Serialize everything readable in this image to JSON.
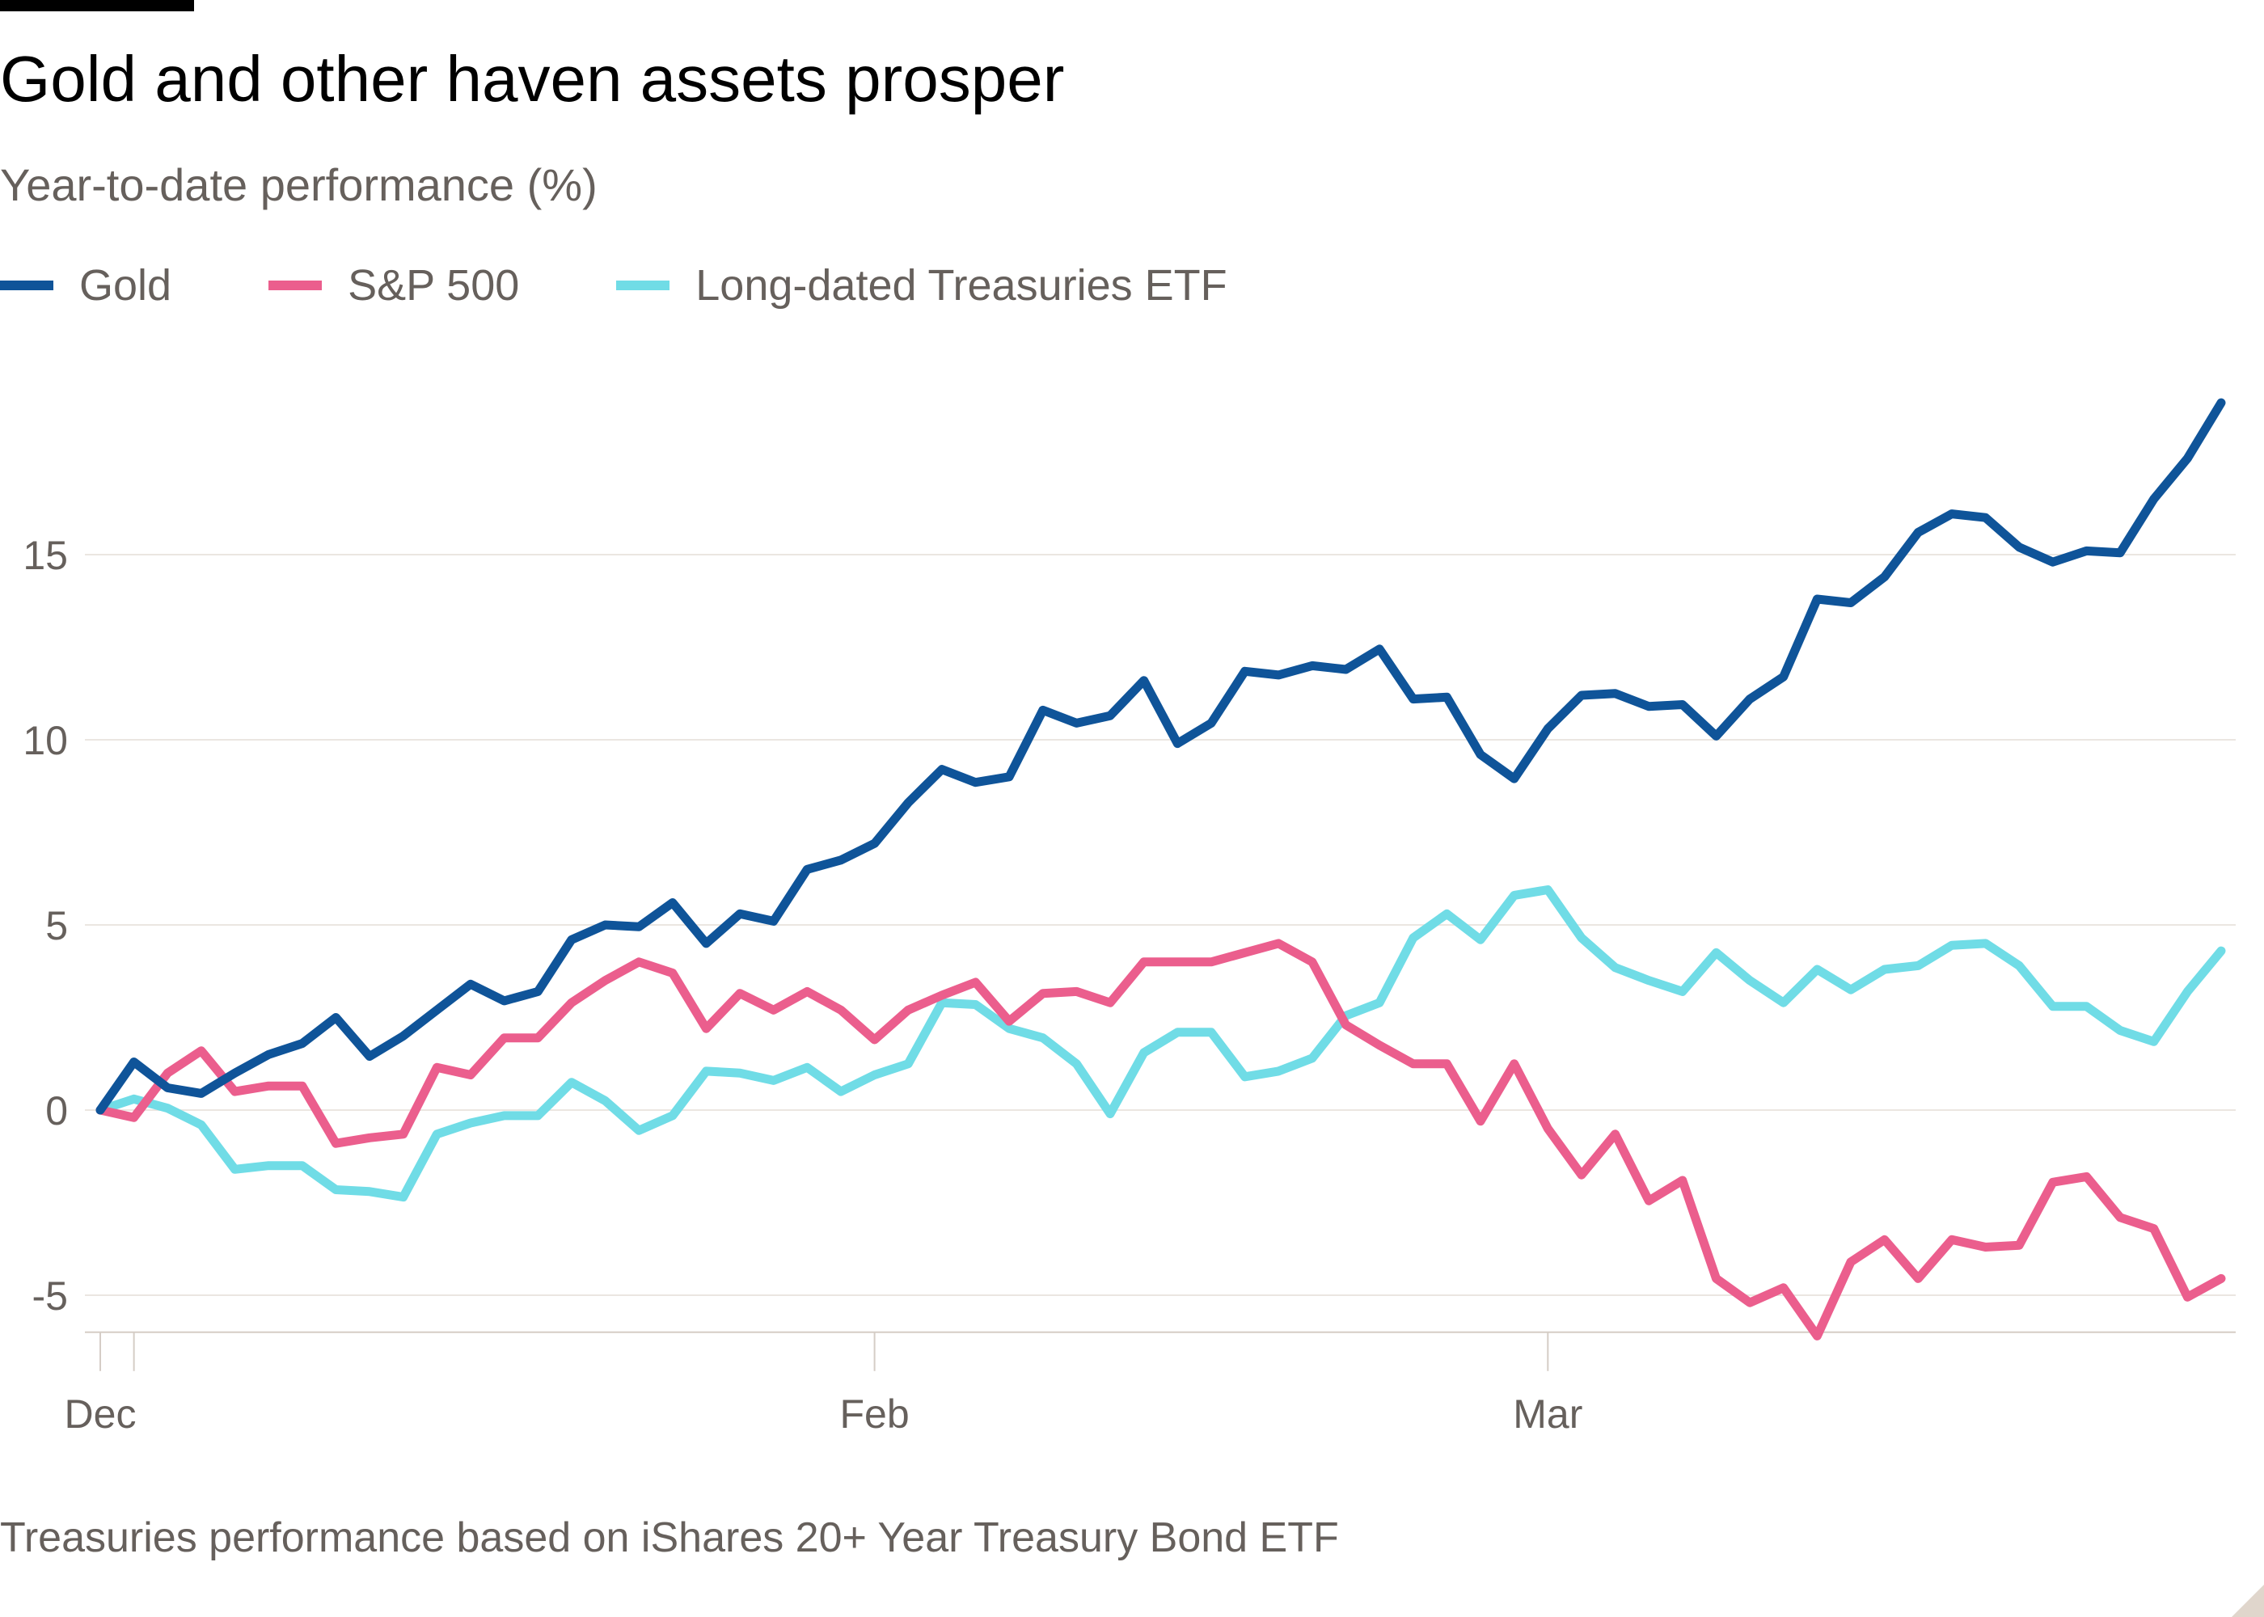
{
  "title": "Gold and other haven assets prosper",
  "subtitle": "Year-to-date performance (%)",
  "footnote": "Treasuries performance based on iShares 20+ Year Treasury Bond ETF",
  "colors": {
    "gold": "#0f5499",
    "sp500": "#eb5e8d",
    "treasuries": "#70dce6",
    "grid": "#ebe6e1",
    "axis": "#d5cdc6"
  },
  "chart_data": {
    "type": "line",
    "title": "Gold and other haven assets prosper",
    "subtitle": "Year-to-date performance (%)",
    "xlabel": "",
    "ylabel": "",
    "ylim": [
      -6,
      20
    ],
    "y_ticks": [
      -5,
      0,
      5,
      10,
      15
    ],
    "y_tick_labels": [
      "-5",
      "0",
      "5",
      "10",
      "15"
    ],
    "x_ticks": [
      {
        "label": "Dec",
        "index": 0
      },
      {
        "label": "",
        "index": 1
      },
      {
        "label": "Feb",
        "index": 23
      },
      {
        "label": "Mar",
        "index": 43
      }
    ],
    "grid": true,
    "legend_placement": "top-left",
    "series": [
      {
        "name": "Gold",
        "color": "#0f5499",
        "values": [
          0,
          1.3,
          0.6,
          0.45,
          1.0,
          1.5,
          1.8,
          2.5,
          1.45,
          2.0,
          2.7,
          3.4,
          2.95,
          3.2,
          4.6,
          5.0,
          4.95,
          5.6,
          4.5,
          5.3,
          5.1,
          6.5,
          6.75,
          7.2,
          8.3,
          9.2,
          8.85,
          9.0,
          10.8,
          10.45,
          10.65,
          11.6,
          9.9,
          10.45,
          11.85,
          11.75,
          12.0,
          11.9,
          12.45,
          11.1,
          11.15,
          9.6,
          8.95,
          10.3,
          11.2,
          11.25,
          10.9,
          10.95,
          10.1,
          11.1,
          11.7,
          13.8,
          13.7,
          14.4,
          15.6,
          16.1,
          16.0,
          15.2,
          14.8,
          15.1,
          15.05,
          16.5,
          17.6,
          19.1
        ]
      },
      {
        "name": "S&P 500",
        "color": "#eb5e8d",
        "values": [
          0,
          -0.2,
          1.0,
          1.6,
          0.5,
          0.65,
          0.65,
          -0.9,
          -0.75,
          -0.65,
          1.15,
          0.95,
          1.95,
          1.95,
          2.9,
          3.5,
          4.0,
          3.7,
          2.2,
          3.15,
          2.7,
          3.2,
          2.7,
          1.9,
          2.7,
          3.1,
          3.45,
          2.4,
          3.15,
          3.2,
          2.9,
          4.0,
          4.0,
          4.0,
          4.25,
          4.5,
          4.0,
          2.3,
          1.75,
          1.25,
          1.25,
          -0.3,
          1.25,
          -0.5,
          -1.75,
          -0.65,
          -2.45,
          -1.9,
          -4.55,
          -5.2,
          -4.8,
          -6.1,
          -4.1,
          -3.5,
          -4.55,
          -3.5,
          -3.7,
          -3.65,
          -1.95,
          -1.8,
          -2.9,
          -3.2,
          -5.05,
          -4.55
        ]
      },
      {
        "name": "Long-dated Treasuries ETF",
        "color": "#70dce6",
        "values": [
          0,
          0.3,
          0.05,
          -0.4,
          -1.6,
          -1.5,
          -1.5,
          -2.15,
          -2.2,
          -2.35,
          -0.65,
          -0.35,
          -0.15,
          -0.15,
          0.75,
          0.25,
          -0.55,
          -0.15,
          1.05,
          1.0,
          0.8,
          1.15,
          0.5,
          0.95,
          1.25,
          2.9,
          2.85,
          2.2,
          1.95,
          1.25,
          -0.1,
          1.55,
          2.1,
          2.1,
          0.9,
          1.05,
          1.4,
          2.55,
          2.9,
          4.65,
          5.3,
          4.6,
          5.8,
          5.95,
          4.65,
          3.85,
          3.5,
          3.2,
          4.25,
          3.5,
          2.9,
          3.8,
          3.25,
          3.8,
          3.9,
          4.45,
          4.5,
          3.9,
          2.8,
          2.8,
          2.15,
          1.85,
          3.2,
          4.3
        ]
      }
    ]
  }
}
